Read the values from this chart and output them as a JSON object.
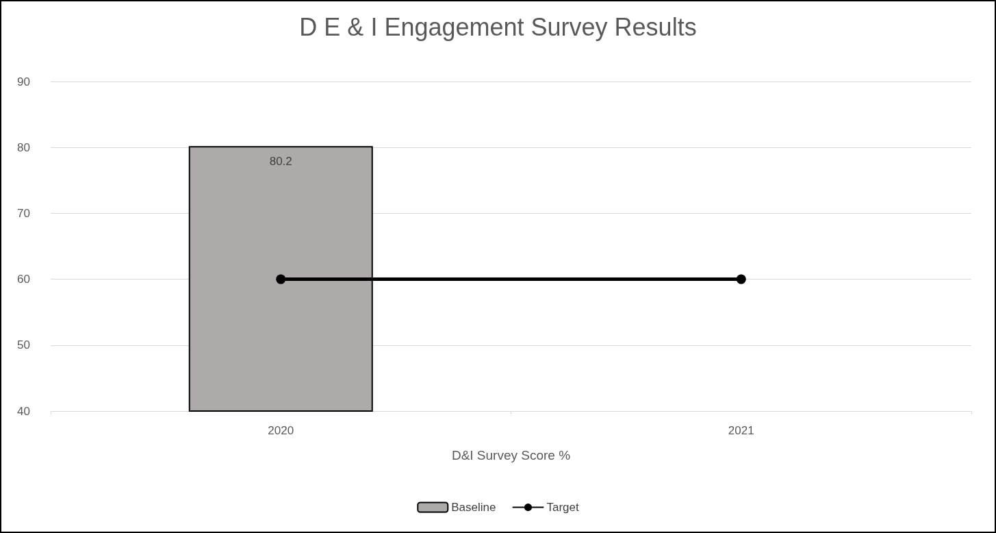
{
  "chart_data": {
    "type": "bar",
    "title": "D E & I Engagement Survey Results",
    "xlabel": "D&I Survey Score %",
    "categories": [
      "2020",
      "2021"
    ],
    "series": [
      {
        "name": "Baseline",
        "color": "#aeaaaa",
        "values": [
          80.2,
          null
        ],
        "value_labels": [
          "80.2",
          null
        ]
      },
      {
        "name": "Target",
        "type": "line",
        "color": "#000000",
        "values": [
          60,
          60
        ],
        "marker": "circle"
      }
    ],
    "ylim": [
      40,
      90
    ],
    "yticks": [
      40,
      50,
      60,
      70,
      80,
      90
    ],
    "grid": "y",
    "legend": "bottom"
  }
}
